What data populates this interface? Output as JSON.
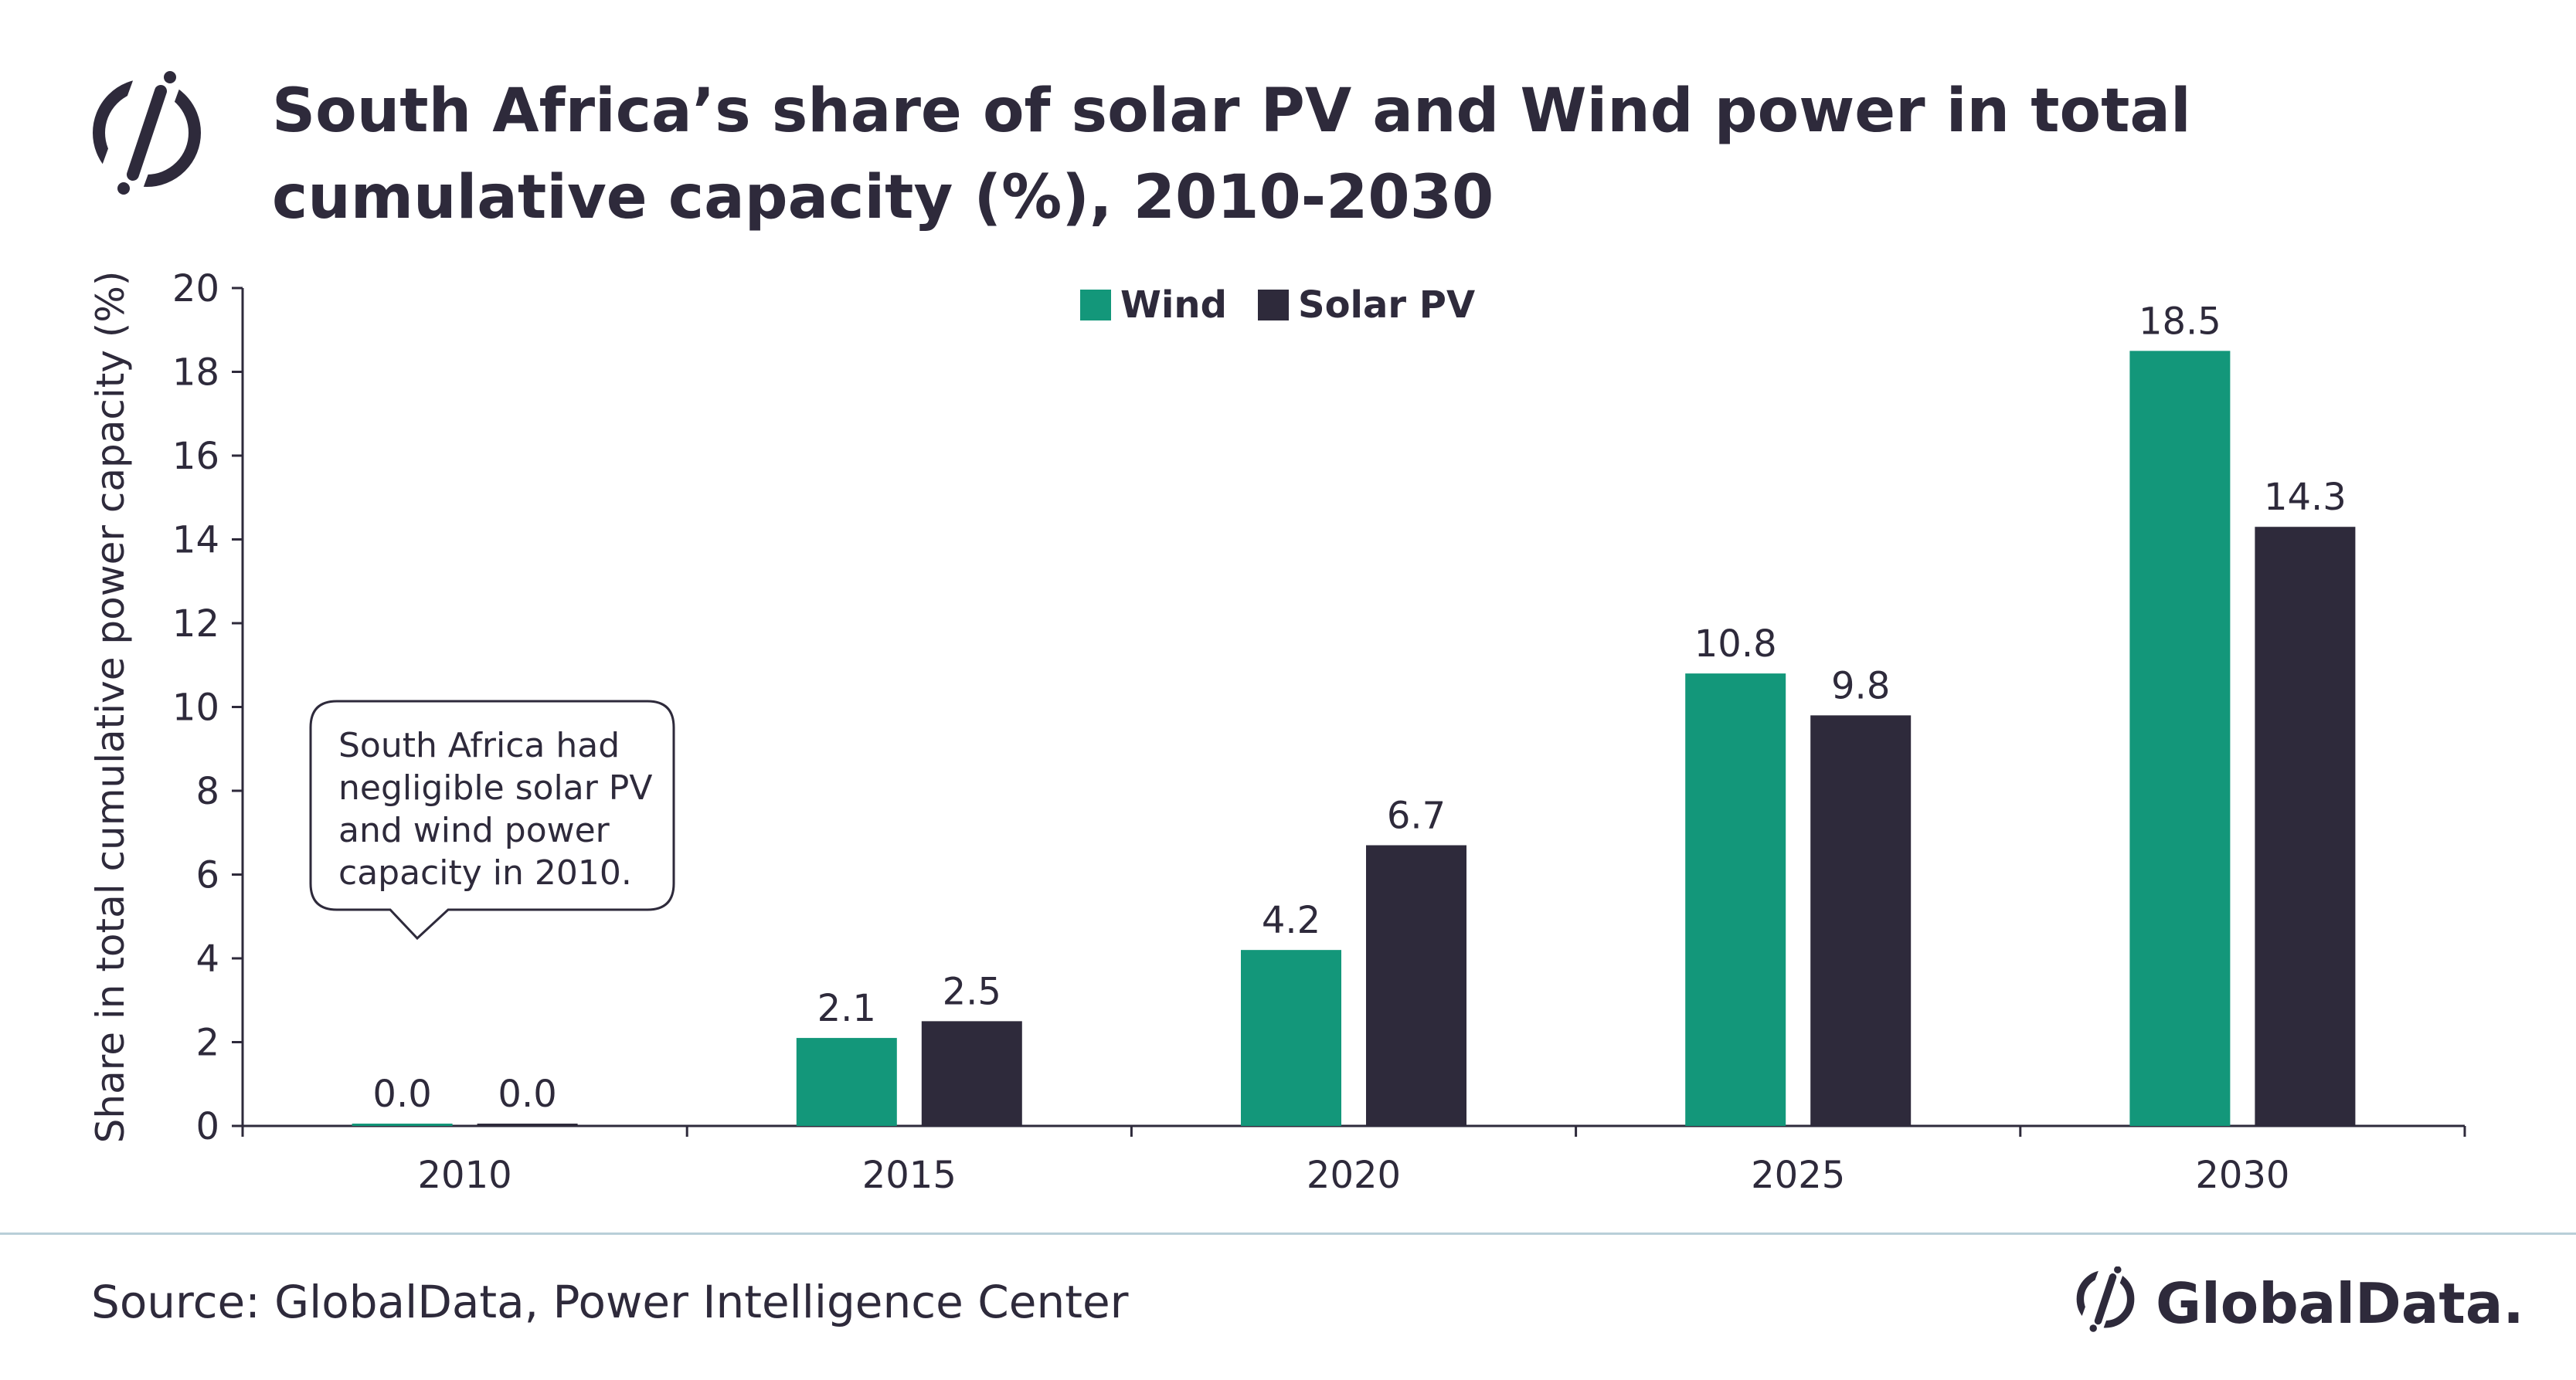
{
  "title": "South Africa’s share of solar PV and Wind power in total cumulative capacity (%), 2010-2030",
  "source": "Source: GlobalData, Power Intelligence Center",
  "brand": "GlobalData.",
  "colors": {
    "wind": "#13977a",
    "solar": "#2e2a3b",
    "text": "#2e2a3b",
    "divider": "#b9cfd8"
  },
  "chart_data": {
    "type": "bar",
    "categories": [
      "2010",
      "2015",
      "2020",
      "2025",
      "2030"
    ],
    "series": [
      {
        "name": "Wind",
        "values": [
          0.0,
          2.1,
          4.2,
          10.8,
          18.5
        ],
        "labels": [
          "0.0",
          "2.1",
          "4.2",
          "10.8",
          "18.5"
        ]
      },
      {
        "name": "Solar PV",
        "values": [
          0.0,
          2.5,
          6.7,
          9.8,
          14.3
        ],
        "labels": [
          "0.0",
          "2.5",
          "6.7",
          "9.8",
          "14.3"
        ]
      }
    ],
    "ylabel": "Share in total cumulative power capacity (%)",
    "xlabel": "",
    "ylim": [
      0,
      20
    ],
    "yticks": [
      "0",
      "2",
      "4",
      "6",
      "8",
      "10",
      "12",
      "14",
      "16",
      "18",
      "20"
    ],
    "legend_position": "top-center",
    "grid": false,
    "annotation": {
      "lines": [
        "South Africa had",
        "negligible solar PV",
        "and wind power",
        "capacity in 2010."
      ],
      "category": "2010"
    }
  }
}
